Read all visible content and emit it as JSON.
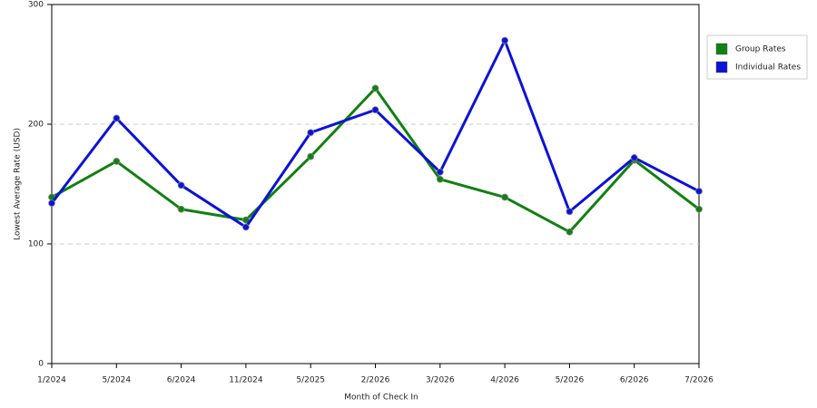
{
  "chart_data": {
    "type": "line",
    "x_label": "Month of Check In",
    "y_label": "Lowest Average Rate (USD)",
    "categories": [
      "1/2024",
      "5/2024",
      "6/2024",
      "11/2024",
      "5/2025",
      "2/2026",
      "3/2026",
      "4/2026",
      "5/2026",
      "6/2026",
      "7/2026"
    ],
    "series": [
      {
        "name": "Group Rates",
        "color": "#118011",
        "values": [
          139,
          169,
          129,
          120,
          173,
          230,
          154,
          139,
          110,
          170,
          129
        ]
      },
      {
        "name": "Individual Rates",
        "color": "#0c12d8",
        "values": [
          134,
          205,
          149,
          114,
          193,
          212,
          160,
          270,
          127,
          172,
          144
        ]
      }
    ],
    "ylim": [
      0,
      300
    ],
    "yticks": [
      0,
      100,
      200,
      300
    ],
    "grid": true,
    "legend": "right"
  }
}
